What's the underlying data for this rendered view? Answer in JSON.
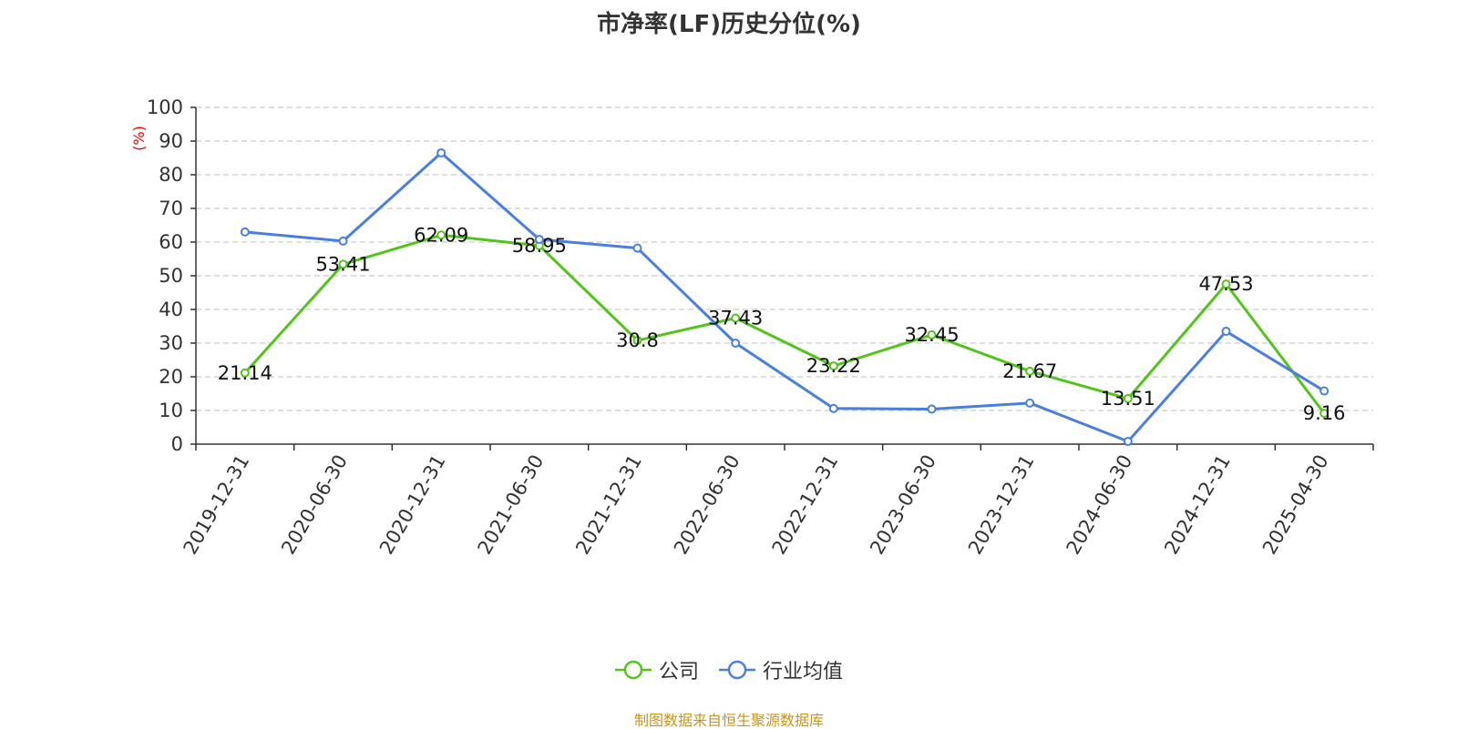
{
  "title": "市净率(LF)历史分位(%)",
  "source_note": "制图数据来自恒生聚源数据库",
  "colors": {
    "company": "#52c41a",
    "industry": "#4a7fe0",
    "grid": "#cccccc",
    "axis": "#333333",
    "unit_label": "#ff0000",
    "source_note": "#c8961e"
  },
  "legend": [
    {
      "name": "公司",
      "color": "#52c41a"
    },
    {
      "name": "行业均值",
      "color": "#4a7fe0"
    }
  ],
  "chart_data": {
    "type": "line",
    "title": "市净率(LF)历史分位(%)",
    "ylabel": "(%)",
    "xlabel": "",
    "ylim": [
      0,
      100
    ],
    "yticks": [
      0,
      10,
      20,
      30,
      40,
      50,
      60,
      70,
      80,
      90,
      100
    ],
    "grid": true,
    "legend_position": "bottom",
    "categories": [
      "2019-12-31",
      "2020-06-30",
      "2020-12-31",
      "2021-06-30",
      "2021-12-31",
      "2022-06-30",
      "2022-12-31",
      "2023-06-30",
      "2023-12-31",
      "2024-06-30",
      "2024-12-31",
      "2025-04-30"
    ],
    "series": [
      {
        "name": "公司",
        "color": "#52c41a",
        "show_labels": true,
        "values": [
          21.14,
          53.41,
          62.09,
          58.95,
          30.8,
          37.43,
          23.22,
          32.45,
          21.67,
          13.51,
          47.53,
          9.16
        ],
        "labels": [
          "21.14",
          "53.41",
          "62.09",
          "58.95",
          "30.8",
          "37.43",
          "23.22",
          "32.45",
          "21.67",
          "13.51",
          "47.53",
          "9.16"
        ]
      },
      {
        "name": "行业均值",
        "color": "#4a7fe0",
        "show_labels": false,
        "values": [
          63.0,
          60.3,
          86.5,
          60.8,
          58.2,
          30.0,
          10.6,
          10.4,
          12.2,
          0.8,
          33.5,
          15.8
        ]
      }
    ]
  }
}
